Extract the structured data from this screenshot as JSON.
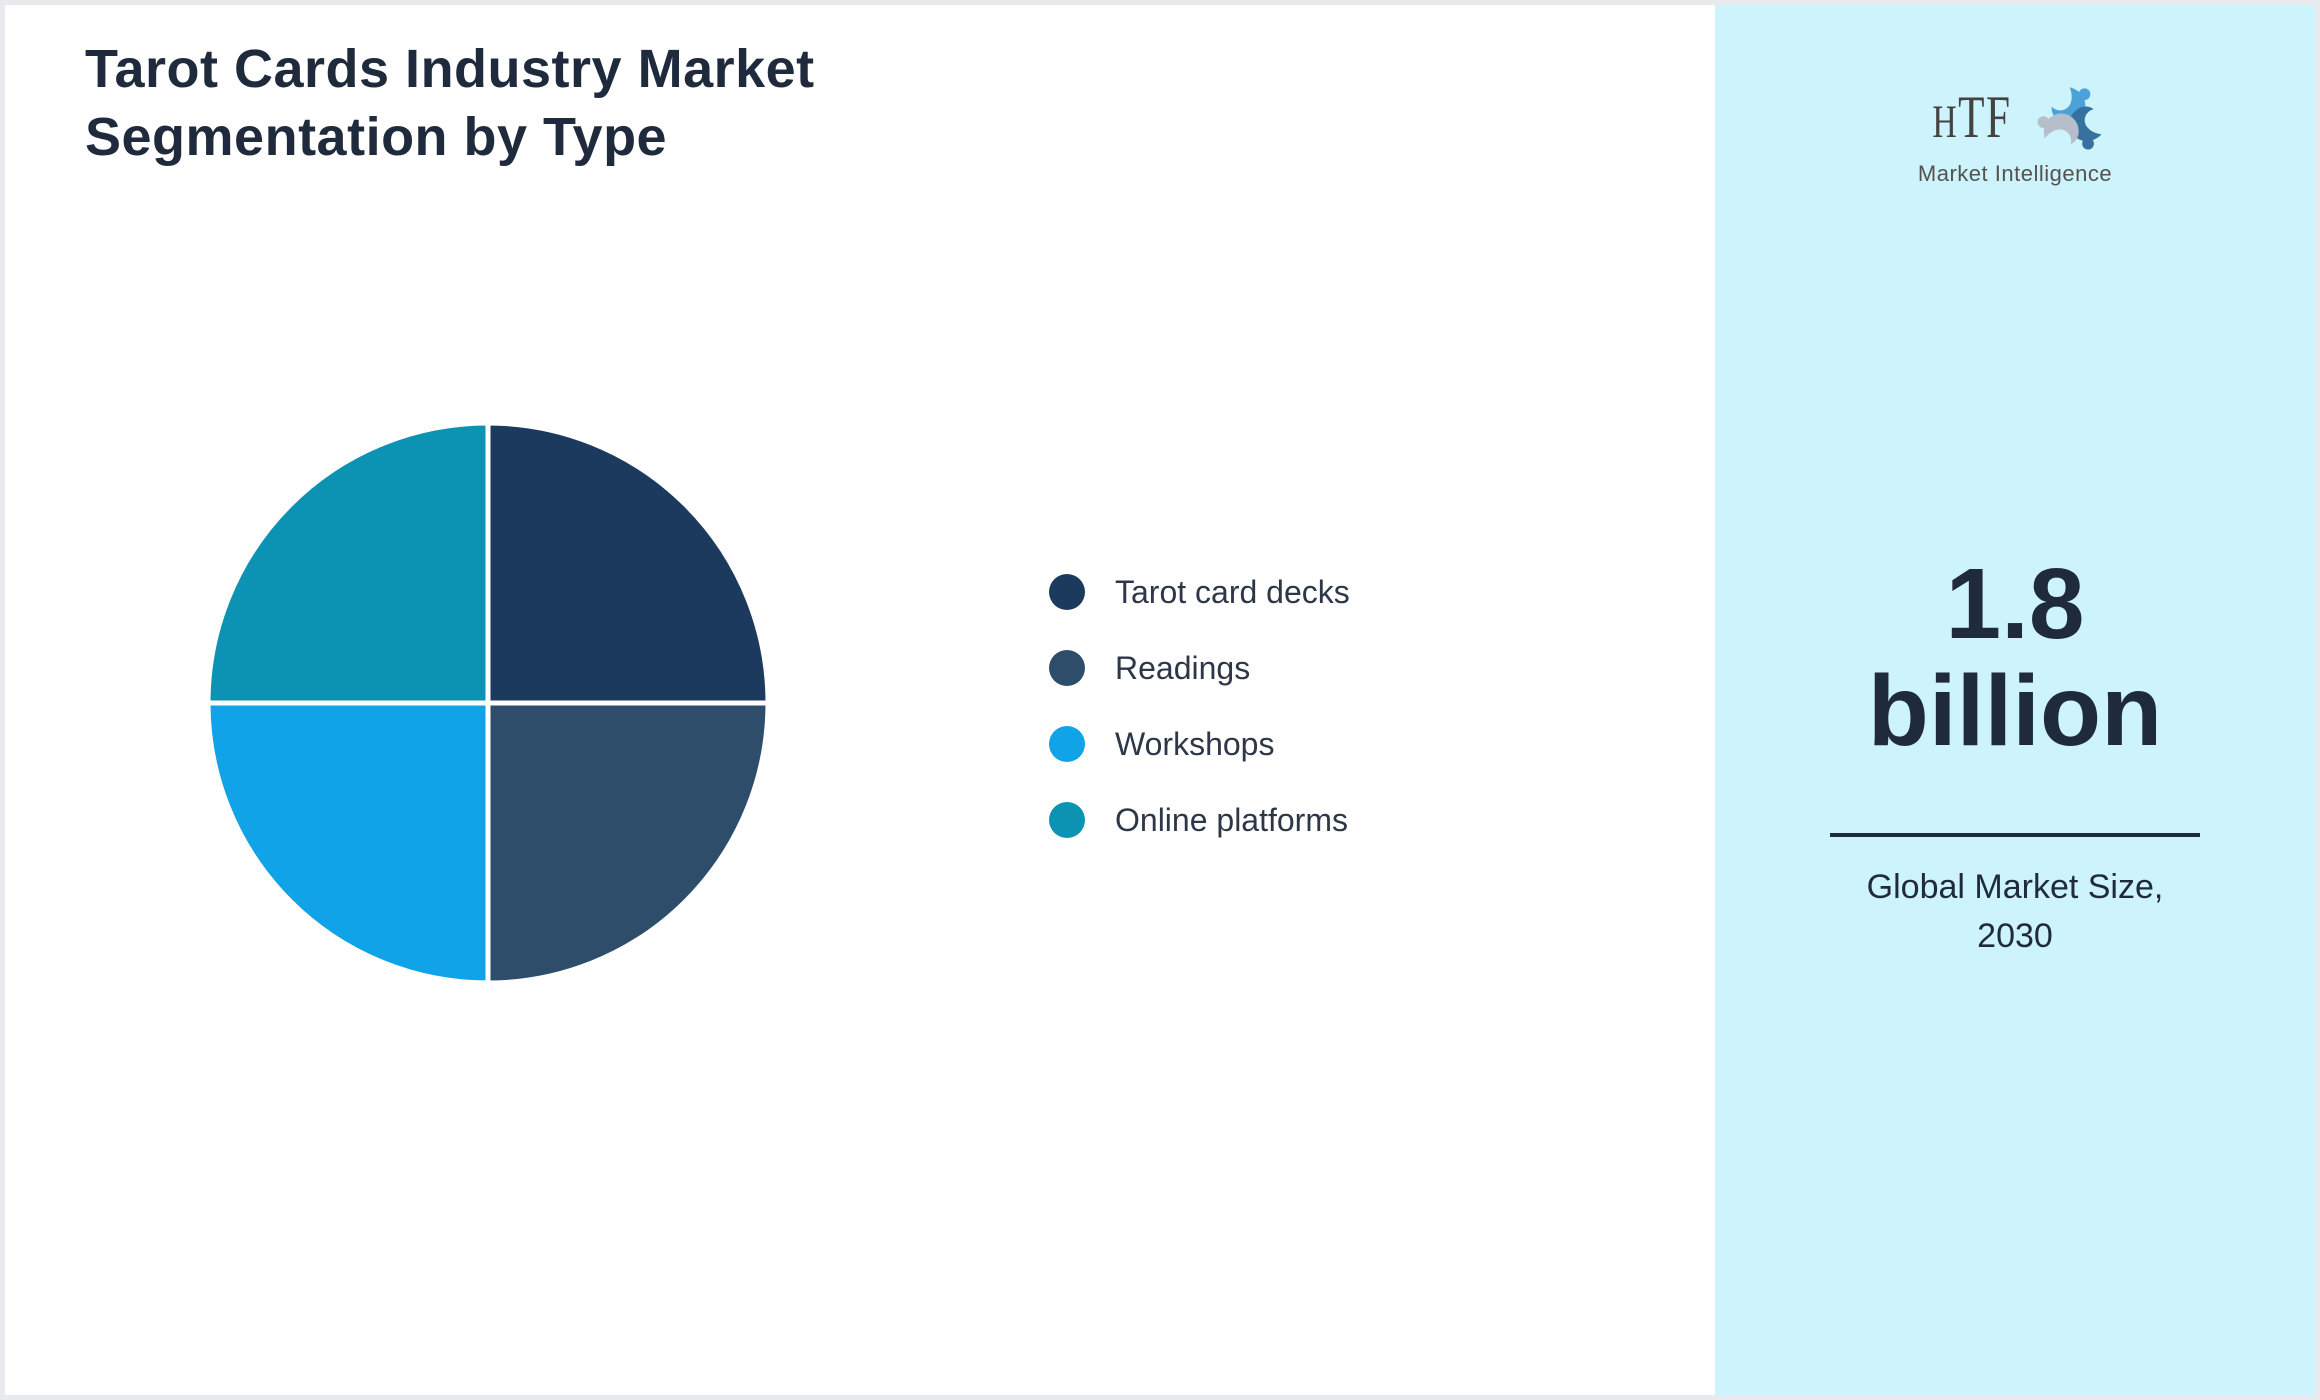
{
  "title": "Tarot Cards Industry Market Segmentation by Type",
  "chart_data": {
    "type": "pie",
    "title": "Tarot Cards Industry Market Segmentation by Type",
    "labels": [
      "Tarot card decks",
      "Readings",
      "Workshops",
      "Online platforms"
    ],
    "values": [
      25,
      25,
      25,
      25
    ],
    "unit": "%",
    "colors": [
      "#1c3a5e",
      "#2e4d6b",
      "#10a3e8",
      "#0c93b4"
    ],
    "legend_position": "right",
    "start_angle_deg_from_12_oclock": 0,
    "direction": "clockwise",
    "slice_separator_color": "#ffffff"
  },
  "sidebar": {
    "background_color": "#cdf3fc",
    "logo": {
      "text": "HTF",
      "tagline": "Market Intelligence",
      "swirl_colors": [
        "#4aa2d9",
        "#36719f",
        "#b6bfc9"
      ]
    },
    "stat": {
      "value": "1.8 billion",
      "label": "Global Market Size, 2030"
    }
  },
  "theme": {
    "text_color": "#1f2b3d",
    "legend_text_color": "#2d3748",
    "page_border_color": "#e8eaee"
  }
}
